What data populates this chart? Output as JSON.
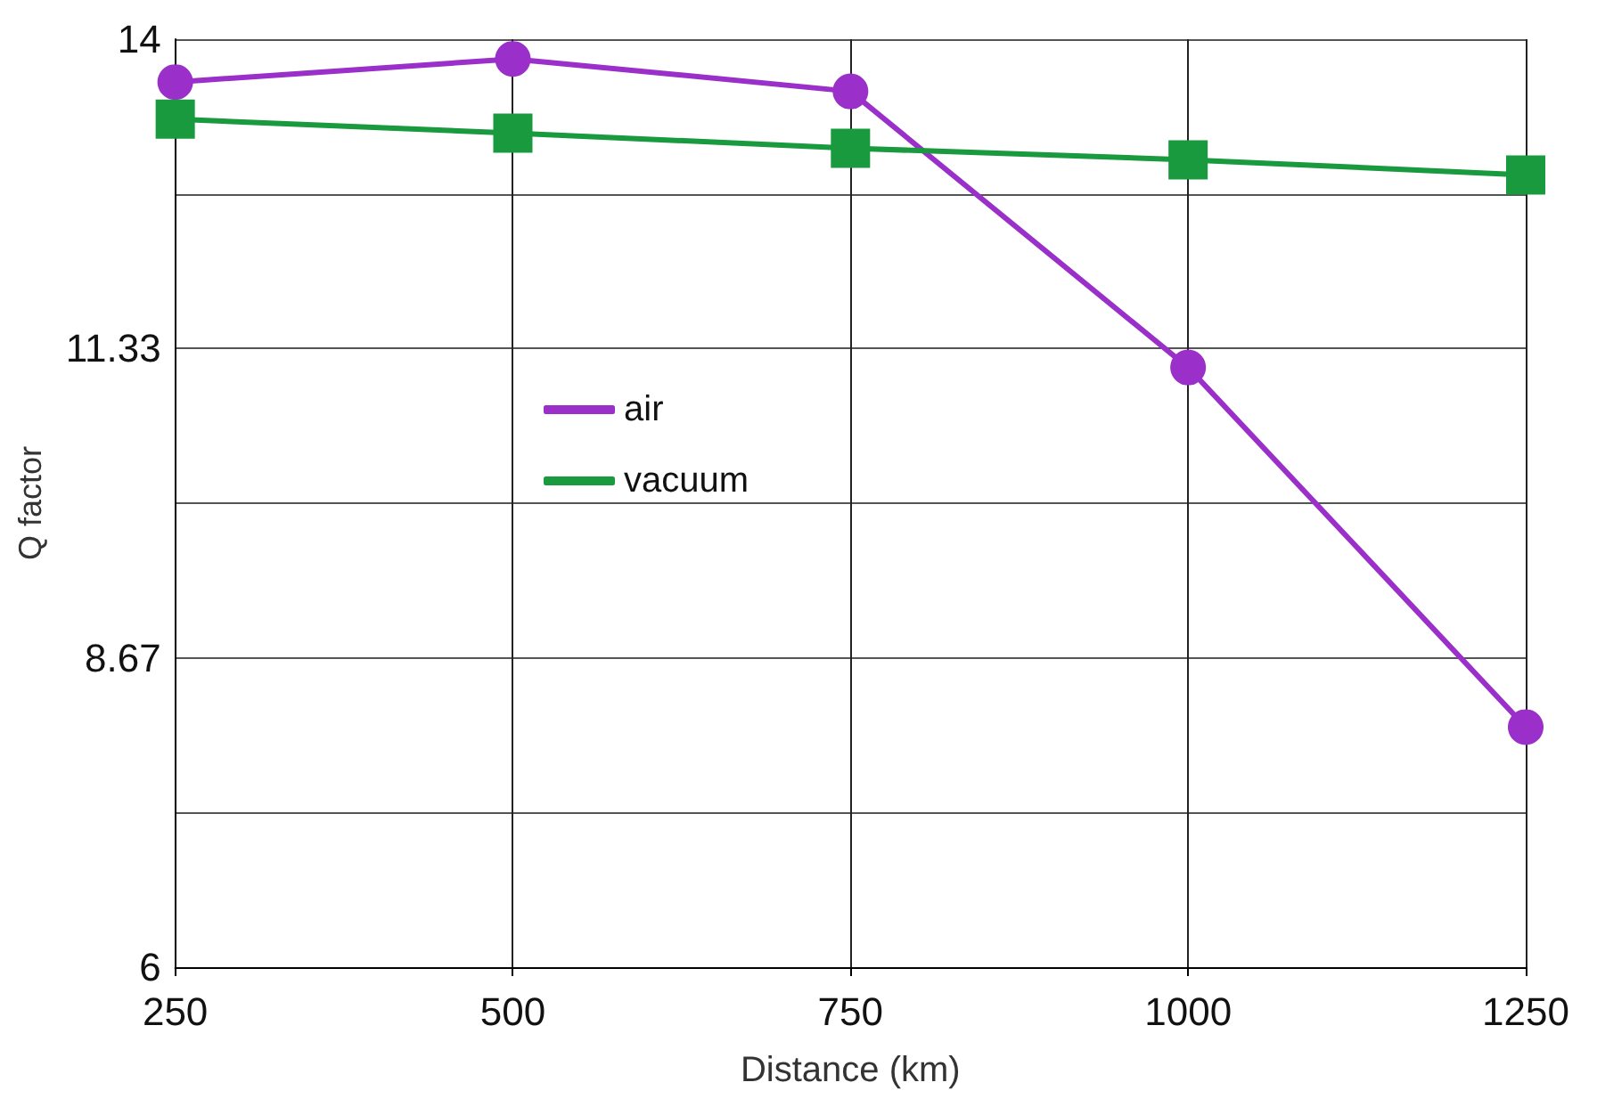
{
  "chart_data": {
    "type": "line",
    "xlabel": "Distance (km)",
    "ylabel": "Q factor",
    "x": [
      250,
      500,
      750,
      1000,
      1250
    ],
    "series": [
      {
        "name": "air",
        "color": "#9a2fc9",
        "marker": "circle",
        "values": [
          13.63,
          13.83,
          13.55,
          11.17,
          8.07
        ]
      },
      {
        "name": "vacuum",
        "color": "#1a9a3e",
        "marker": "square",
        "values": [
          13.31,
          13.19,
          13.06,
          12.96,
          12.83
        ]
      }
    ],
    "xlim": [
      250,
      1250
    ],
    "xticks": [
      250,
      500,
      750,
      1000,
      1250
    ],
    "ylim": [
      6,
      14
    ],
    "yticks": [
      6,
      {
        "value": 7.333,
        "label": null
      },
      {
        "value": 8.667,
        "label": "8.67"
      },
      {
        "value": 10,
        "label": null
      },
      {
        "value": 11.333,
        "label": "11.33"
      },
      {
        "value": 12.667,
        "label": null
      },
      14
    ],
    "grid": true,
    "legend": "left",
    "line_style": "solid"
  }
}
